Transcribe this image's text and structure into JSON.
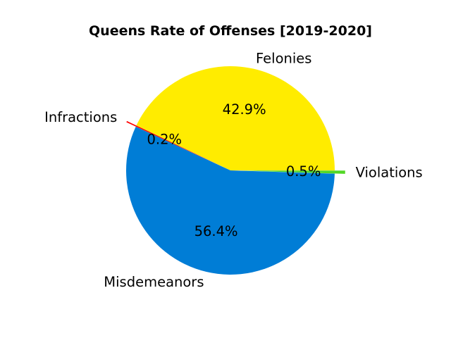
{
  "chart_data": {
    "type": "pie",
    "title": "Queens Rate of Offenses [2019-2020]",
    "slices": [
      {
        "label": "Felonies",
        "value": 42.9,
        "pct_label": "42.9%",
        "color": "#ffec00",
        "explode": false
      },
      {
        "label": "Infractions",
        "value": 0.2,
        "pct_label": "0.2%",
        "color": "#ff0000",
        "explode": true
      },
      {
        "label": "Misdemeanors",
        "value": 56.4,
        "pct_label": "56.4%",
        "color": "#007dd6",
        "explode": false
      },
      {
        "label": "Violations",
        "value": 0.5,
        "pct_label": "0.5%",
        "color": "#52d726",
        "explode": true
      }
    ],
    "start_angle": 0,
    "direction": "counterclockwise"
  }
}
